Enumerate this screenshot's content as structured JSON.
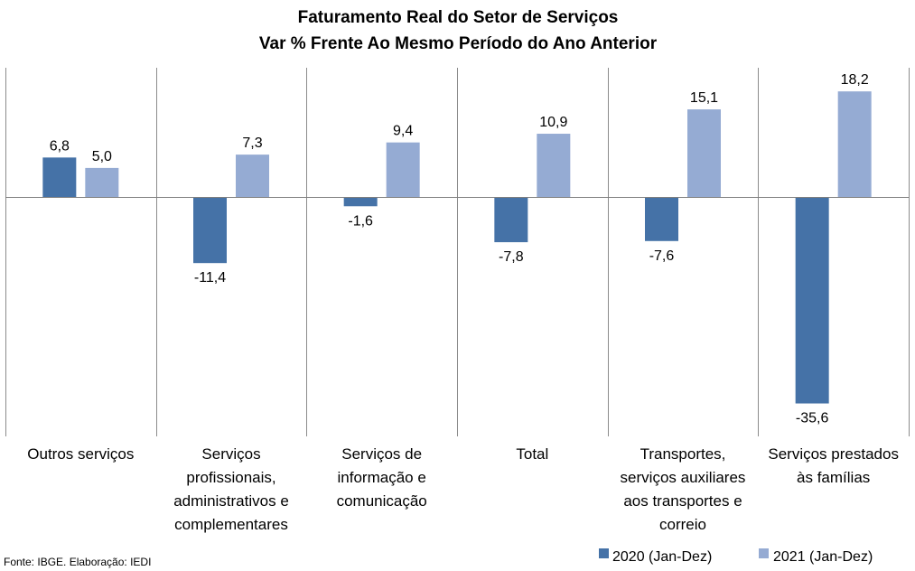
{
  "chart_data": {
    "type": "bar",
    "title": "Faturamento Real do Setor de Serviços",
    "subtitle": "Var % Frente Ao Mesmo Período do Ano Anterior",
    "categories": [
      "Outros serviços",
      "Serviços profissionais, administrativos e complementares",
      "Serviços de informação e comunicação",
      "Total",
      "Transportes, serviços auxiliares aos transportes e correio",
      "Serviços prestados às famílias"
    ],
    "category_lines": [
      [
        "Outros serviços"
      ],
      [
        "Serviços",
        "profissionais,",
        "administrativos e",
        "complementares"
      ],
      [
        "Serviços de",
        "informação e",
        "comunicação"
      ],
      [
        "Total"
      ],
      [
        "Transportes,",
        "serviços auxiliares",
        "aos transportes e",
        "correio"
      ],
      [
        "Serviços prestados",
        "às famílias"
      ]
    ],
    "series": [
      {
        "name": "2020 (Jan-Dez)",
        "color": "#4572A7",
        "values": [
          6.8,
          -11.4,
          -1.6,
          -7.8,
          -7.6,
          -35.6
        ],
        "labels": [
          "6,8",
          "-11,4",
          "-1,6",
          "-7,8",
          "-7,6",
          "-35,6"
        ]
      },
      {
        "name": "2021 (Jan-Dez)",
        "color": "#95ABD3",
        "values": [
          5.0,
          7.3,
          9.4,
          10.9,
          15.1,
          18.2
        ],
        "labels": [
          "5,0",
          "7,3",
          "9,4",
          "10,9",
          "15,1",
          "18,2"
        ]
      }
    ],
    "ylim": [
      -37,
      22
    ],
    "legend_position": "bottom-right",
    "gridlines": "vertical separators between categories"
  },
  "source_note": "Fonte: IBGE. Elaboração: IEDI"
}
